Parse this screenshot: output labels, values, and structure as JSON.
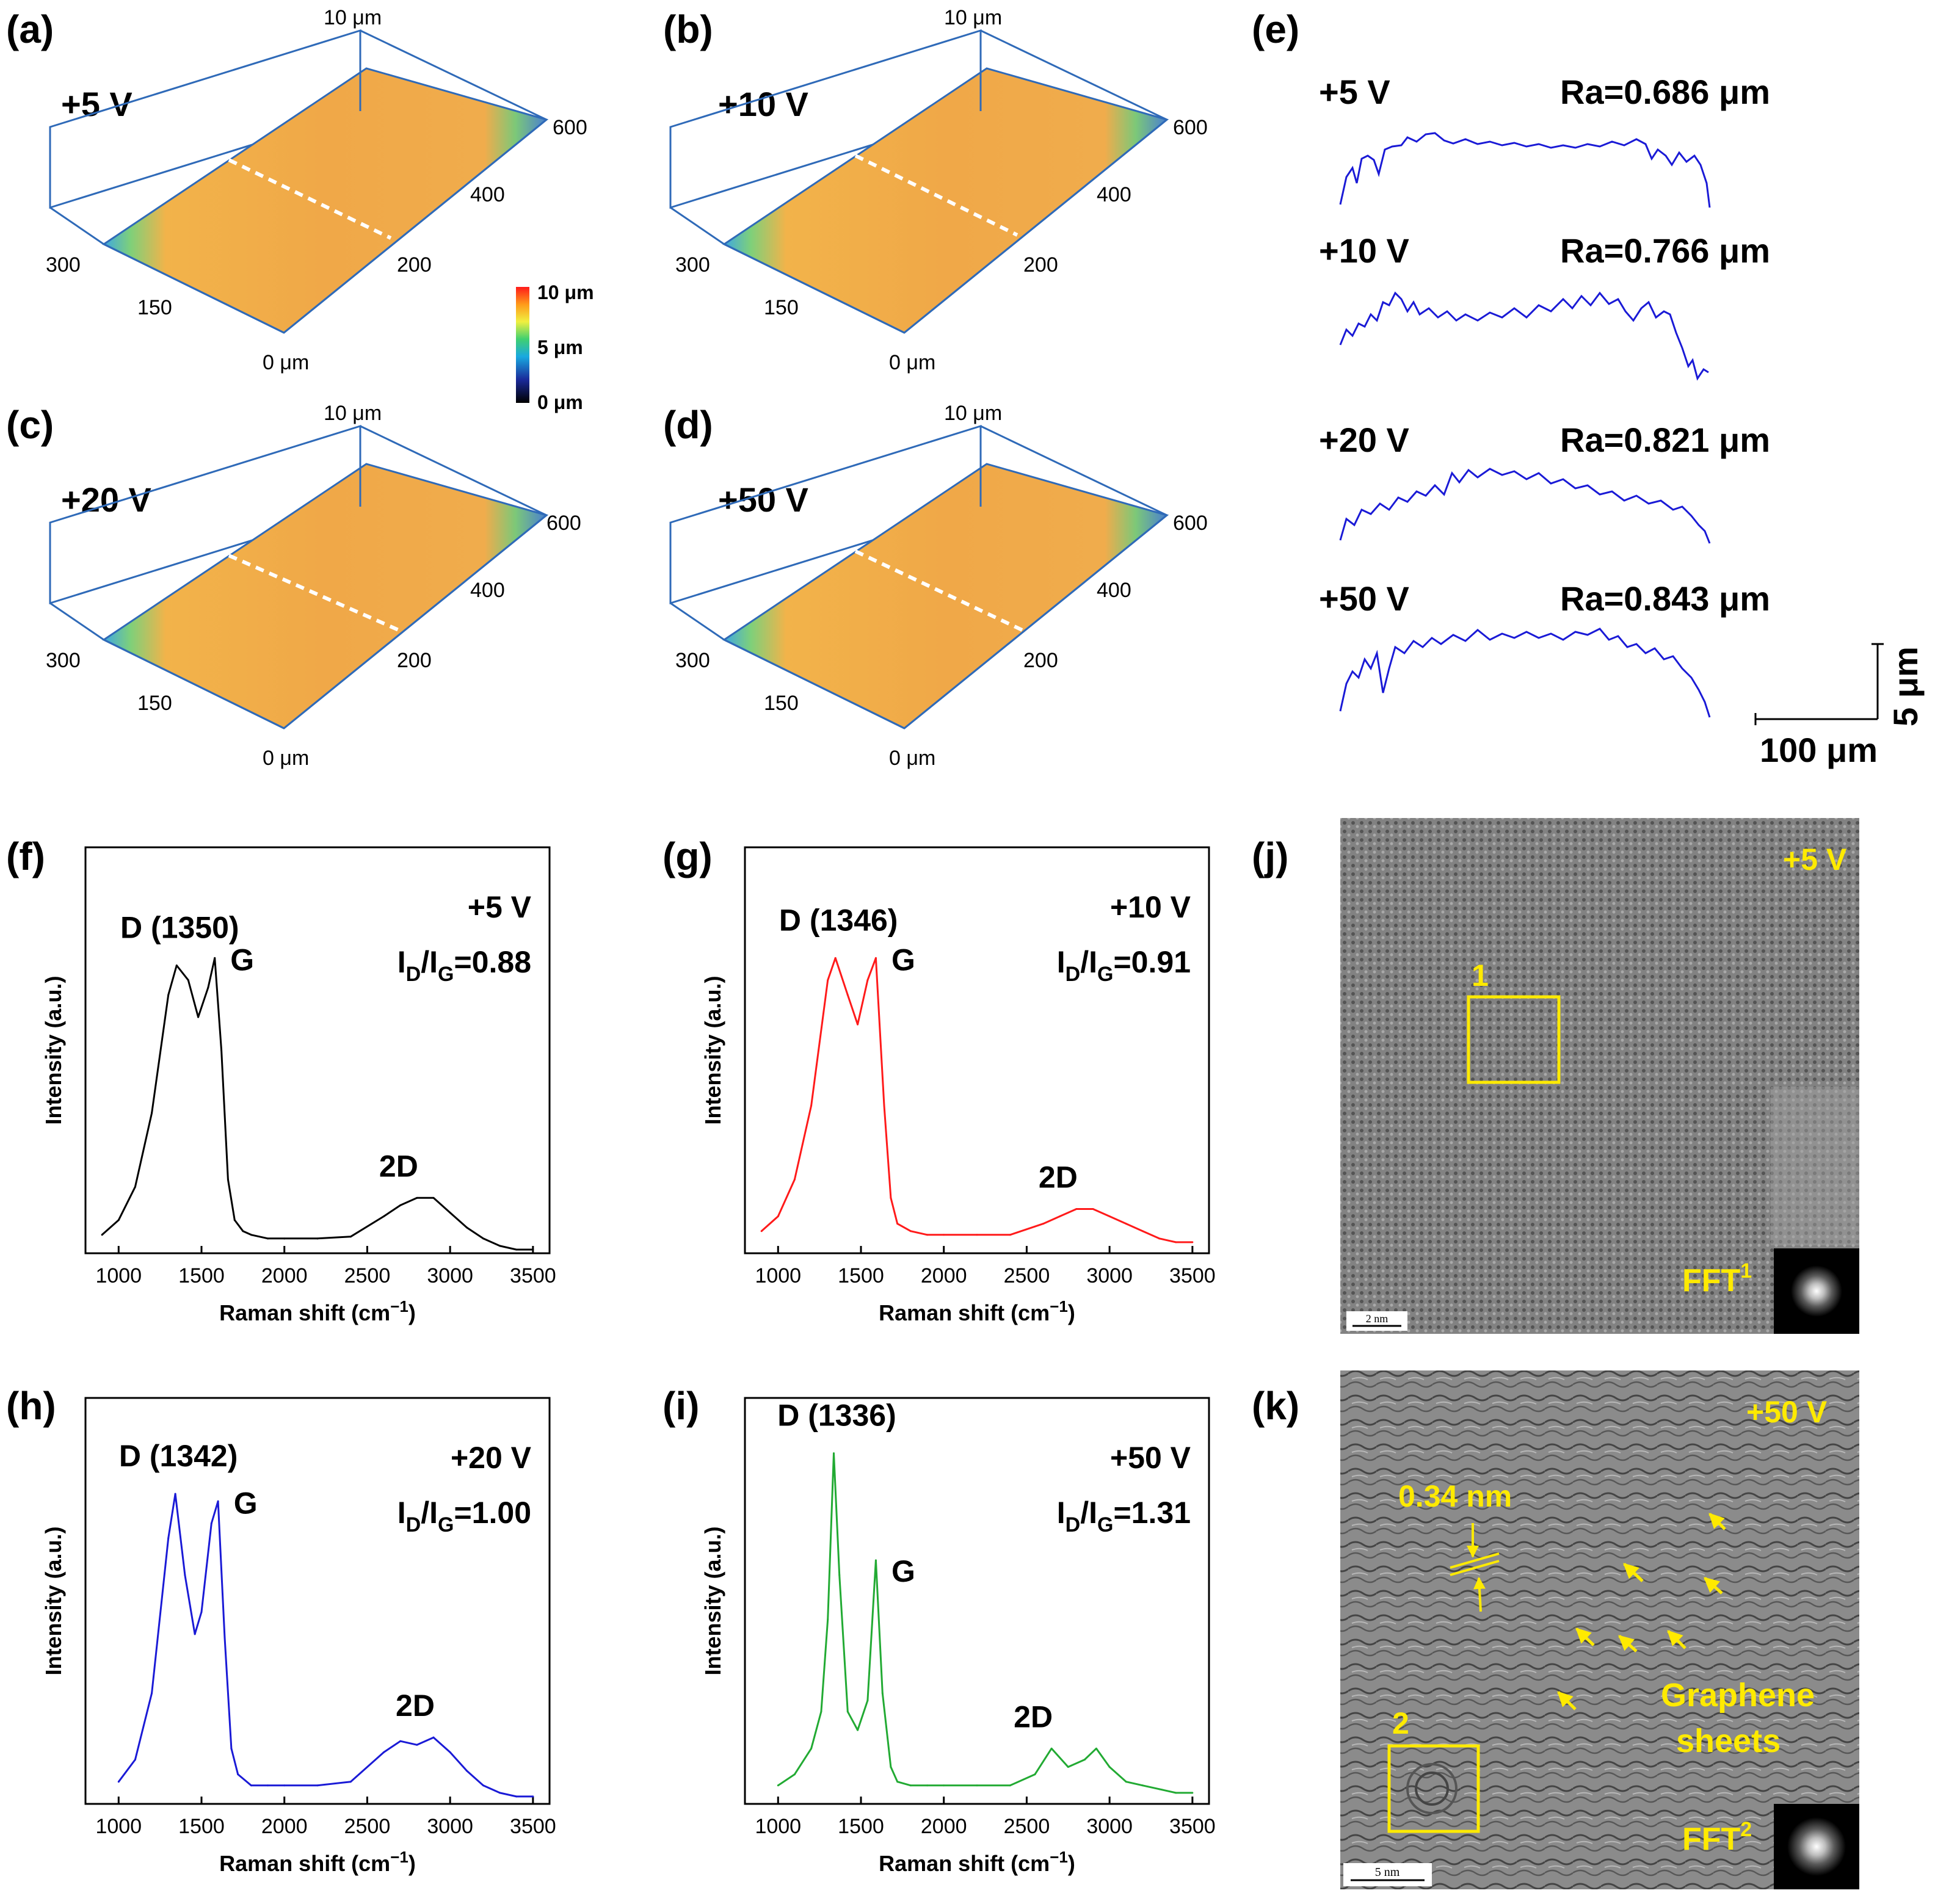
{
  "colors": {
    "axis3d": "#2f6ab8",
    "profile": "#1a1ad6",
    "black": "#000000",
    "red": "#ff1a1a",
    "blue": "#1a1ad6",
    "green": "#22aa33",
    "yellow": "#ffea00"
  },
  "topo": [
    {
      "id": "a",
      "panel": "(a)",
      "voltage": "+5 V",
      "z_top": "10 μm",
      "z_bottom": "0 μm",
      "y_ticks": [
        "150",
        "300"
      ],
      "x_ticks": [
        "200",
        "400",
        "600"
      ]
    },
    {
      "id": "b",
      "panel": "(b)",
      "voltage": "+10 V",
      "z_top": "10 μm",
      "z_bottom": "0 μm",
      "y_ticks": [
        "150",
        "300"
      ],
      "x_ticks": [
        "200",
        "400",
        "600"
      ]
    },
    {
      "id": "c",
      "panel": "(c)",
      "voltage": "+20 V",
      "z_top": "10 μm",
      "z_bottom": "0 μm",
      "y_ticks": [
        "150",
        "300"
      ],
      "x_ticks": [
        "200",
        "400",
        "600"
      ]
    },
    {
      "id": "d",
      "panel": "(d)",
      "voltage": "+50 V",
      "z_top": "10 μm",
      "z_bottom": "0 μm",
      "y_ticks": [
        "150",
        "300"
      ],
      "x_ticks": [
        "200",
        "400",
        "600"
      ]
    }
  ],
  "colorbar": {
    "max": "10 μm",
    "mid": "5 μm",
    "min": "0 μm"
  },
  "profiles": {
    "panel": "(e)",
    "items": [
      {
        "voltage": "+5 V",
        "ra": "Ra=0.686 μm"
      },
      {
        "voltage": "+10 V",
        "ra": "Ra=0.766 μm"
      },
      {
        "voltage": "+20 V",
        "ra": "Ra=0.821 μm"
      },
      {
        "voltage": "+50 V",
        "ra": "Ra=0.843 μm"
      }
    ],
    "scale_v": "5 μm",
    "scale_h": "100 μm"
  },
  "chart_data": [
    {
      "type": "line",
      "panel": "(f)",
      "xlabel": "Raman shift (cm",
      "xlabel_sup": "−1",
      "xlabel_end": ")",
      "ylabel": "Intensity (a.u.)",
      "xlim": [
        800,
        3600
      ],
      "ylim": [
        0,
        1.1
      ],
      "x_ticks": [
        1000,
        1500,
        2000,
        2500,
        3000,
        3500
      ],
      "voltage": "+5 V",
      "ratio_label": "I",
      "ratio_sub1": "D",
      "ratio_mid": "/I",
      "ratio_sub2": "G",
      "ratio_value": "=0.88",
      "peak_labels": {
        "D": "D (1350)",
        "G": "G",
        "2D": "2D"
      },
      "color": "#000000",
      "x": [
        900,
        1000,
        1100,
        1200,
        1300,
        1350,
        1420,
        1480,
        1540,
        1580,
        1620,
        1660,
        1700,
        1750,
        1800,
        1900,
        2000,
        2200,
        2400,
        2600,
        2700,
        2800,
        2900,
        3000,
        3100,
        3200,
        3300,
        3400,
        3500
      ],
      "y": [
        0.05,
        0.09,
        0.18,
        0.38,
        0.7,
        0.78,
        0.74,
        0.64,
        0.72,
        0.8,
        0.55,
        0.2,
        0.09,
        0.06,
        0.05,
        0.04,
        0.04,
        0.04,
        0.045,
        0.1,
        0.13,
        0.15,
        0.15,
        0.11,
        0.07,
        0.04,
        0.02,
        0.01,
        0.01
      ]
    },
    {
      "type": "line",
      "panel": "(g)",
      "xlabel": "Raman shift (cm",
      "xlabel_sup": "−1",
      "xlabel_end": ")",
      "ylabel": "Intensity (a.u.)",
      "xlim": [
        800,
        3600
      ],
      "ylim": [
        0,
        1.1
      ],
      "x_ticks": [
        1000,
        1500,
        2000,
        2500,
        3000,
        3500
      ],
      "voltage": "+10 V",
      "ratio_label": "I",
      "ratio_sub1": "D",
      "ratio_mid": "/I",
      "ratio_sub2": "G",
      "ratio_value": "=0.91",
      "peak_labels": {
        "D": "D (1346)",
        "G": "G",
        "2D": "2D"
      },
      "color": "#ff1a1a",
      "x": [
        900,
        1000,
        1100,
        1200,
        1300,
        1346,
        1420,
        1480,
        1540,
        1590,
        1640,
        1680,
        1720,
        1800,
        1900,
        2000,
        2200,
        2400,
        2600,
        2700,
        2800,
        2900,
        3000,
        3100,
        3200,
        3300,
        3400,
        3500
      ],
      "y": [
        0.06,
        0.1,
        0.2,
        0.4,
        0.74,
        0.8,
        0.7,
        0.62,
        0.74,
        0.8,
        0.4,
        0.15,
        0.08,
        0.06,
        0.05,
        0.05,
        0.05,
        0.05,
        0.08,
        0.1,
        0.12,
        0.12,
        0.1,
        0.08,
        0.06,
        0.04,
        0.03,
        0.03
      ]
    },
    {
      "type": "line",
      "panel": "(h)",
      "xlabel": "Raman shift (cm",
      "xlabel_sup": "−1",
      "xlabel_end": ")",
      "ylabel": "Intensity (a.u.)",
      "xlim": [
        800,
        3600
      ],
      "ylim": [
        0,
        1.1
      ],
      "x_ticks": [
        1000,
        1500,
        2000,
        2500,
        3000,
        3500
      ],
      "voltage": "+20 V",
      "ratio_label": "I",
      "ratio_sub1": "D",
      "ratio_mid": "/I",
      "ratio_sub2": "G",
      "ratio_value": "=1.00",
      "peak_labels": {
        "D": "D (1342)",
        "G": "G",
        "2D": "2D"
      },
      "color": "#1a1ad6",
      "x": [
        1000,
        1100,
        1200,
        1300,
        1342,
        1400,
        1460,
        1500,
        1560,
        1600,
        1640,
        1680,
        1720,
        1800,
        1900,
        2000,
        2200,
        2400,
        2600,
        2700,
        2800,
        2900,
        3000,
        3100,
        3200,
        3300,
        3400,
        3500
      ],
      "y": [
        0.06,
        0.12,
        0.3,
        0.72,
        0.84,
        0.62,
        0.46,
        0.52,
        0.76,
        0.82,
        0.45,
        0.15,
        0.08,
        0.05,
        0.05,
        0.05,
        0.05,
        0.06,
        0.14,
        0.17,
        0.16,
        0.18,
        0.14,
        0.09,
        0.05,
        0.03,
        0.02,
        0.02
      ]
    },
    {
      "type": "line",
      "panel": "(i)",
      "xlabel": "Raman shift (cm",
      "xlabel_sup": "−1",
      "xlabel_end": ")",
      "ylabel": "Intensity (a.u.)",
      "xlim": [
        800,
        3600
      ],
      "ylim": [
        0,
        1.1
      ],
      "x_ticks": [
        1000,
        1500,
        2000,
        2500,
        3000,
        3500
      ],
      "voltage": "+50 V",
      "ratio_label": "I",
      "ratio_sub1": "D",
      "ratio_mid": "/I",
      "ratio_sub2": "G",
      "ratio_value": "=1.31",
      "peak_labels": {
        "D": "D (1336)",
        "G": "G",
        "2D": "2D"
      },
      "color": "#22aa33",
      "x": [
        1000,
        1100,
        1200,
        1260,
        1300,
        1336,
        1370,
        1420,
        1480,
        1540,
        1590,
        1630,
        1680,
        1720,
        1800,
        1900,
        2000,
        2200,
        2400,
        2550,
        2650,
        2750,
        2850,
        2920,
        3000,
        3100,
        3200,
        3300,
        3400,
        3500
      ],
      "y": [
        0.05,
        0.08,
        0.15,
        0.25,
        0.5,
        0.95,
        0.62,
        0.25,
        0.2,
        0.28,
        0.66,
        0.3,
        0.1,
        0.06,
        0.05,
        0.05,
        0.05,
        0.05,
        0.05,
        0.08,
        0.15,
        0.1,
        0.12,
        0.15,
        0.1,
        0.06,
        0.05,
        0.04,
        0.03,
        0.03
      ]
    }
  ],
  "tem": [
    {
      "panel": "(j)",
      "voltage": "+5 V",
      "box_label": "1",
      "fft": "FFT",
      "fft_sup": "1",
      "scale": "2 nm"
    },
    {
      "panel": "(k)",
      "voltage": "+50 V",
      "box_label": "2",
      "fft": "FFT",
      "fft_sup": "2",
      "scale": "5 nm",
      "spacing": "0.34 nm",
      "sheets": [
        "Graphene",
        "sheets"
      ]
    }
  ]
}
